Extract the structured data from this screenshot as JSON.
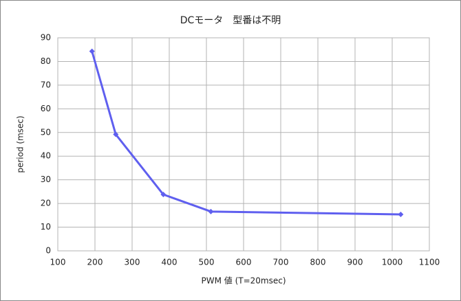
{
  "chart_data": {
    "type": "line",
    "title": "DCモータ　型番は不明",
    "x_label": "PWM 値 (T=20msec)",
    "y_label": "period (msec)",
    "x": [
      192,
      256,
      384,
      512,
      1023
    ],
    "values": [
      84.3,
      49.2,
      23.8,
      16.6,
      15.4
    ],
    "color": "#5f5fef",
    "xlim": [
      100,
      1100
    ],
    "xticks": [
      100,
      200,
      300,
      400,
      500,
      600,
      700,
      800,
      900,
      1000,
      1100
    ],
    "ylim": [
      0,
      90
    ],
    "yticks": [
      0,
      10,
      20,
      30,
      40,
      50,
      60,
      70,
      80,
      90
    ],
    "grid": true
  }
}
